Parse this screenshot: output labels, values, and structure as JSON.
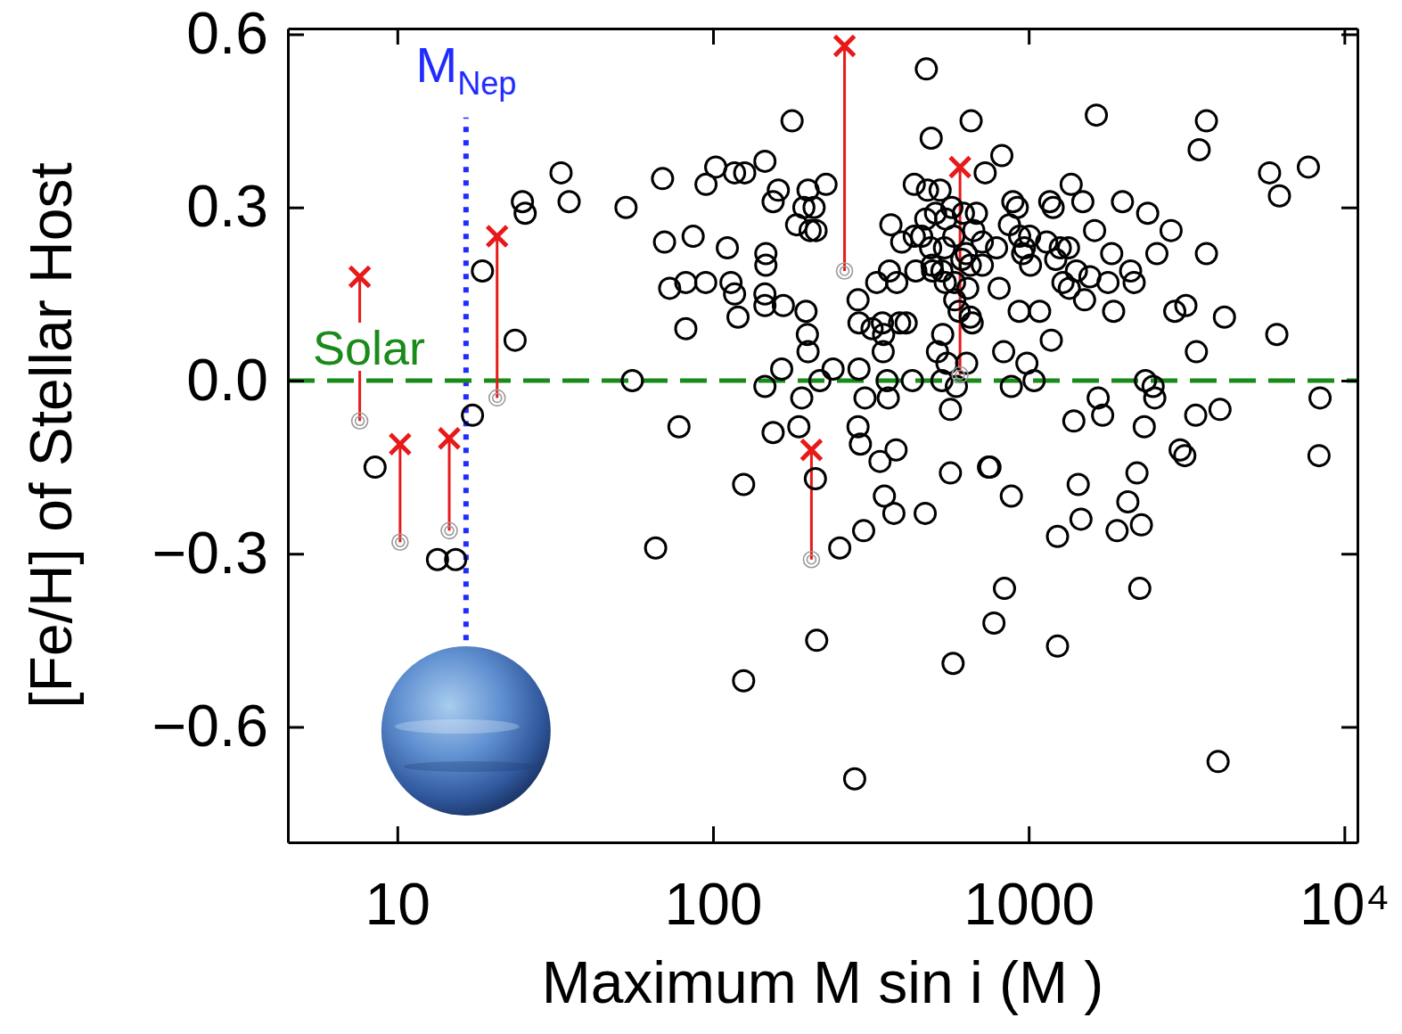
{
  "chart_data": {
    "type": "scatter",
    "x_label": "Maximum M sin i (M )",
    "y_label": "[Fe/H] of Stellar Host",
    "log": "x",
    "grid": false,
    "xlim": [
      4.5,
      11000
    ],
    "ylim": [
      -0.8,
      0.61
    ],
    "xticks": [
      10,
      100,
      1000,
      {
        "value": 10000,
        "label": "10⁴"
      }
    ],
    "yticks": [
      {
        "value": -0.6,
        "label": "−0.6"
      },
      {
        "value": -0.3,
        "label": "−0.3"
      },
      {
        "value": 0,
        "label": "0.0"
      },
      0.3,
      0.6
    ],
    "reference_lines": [
      {
        "label": "M",
        "label_subscript": "Nep",
        "x": 16.5,
        "y_range": [
          -0.45,
          0.456
        ],
        "color": "#1f2bff",
        "line_style": "dotted"
      },
      {
        "label": "Solar",
        "y": 0,
        "color": "#1a8a1a",
        "line_style": "dashed"
      }
    ],
    "series": [
      {
        "type": "scatter",
        "marker": "circle",
        "color": "#000000",
        "x": [
          8.5,
          13.4,
          15.3,
          17.3,
          18.6,
          23.6,
          24.9,
          25.4,
          33,
          35,
          53,
          55.5,
          65.8,
          69.2,
          70.2,
          72.9,
          78,
          82,
          82,
          86.5,
          94.8,
          95,
          102,
          111,
          114,
          117,
          117,
          120,
          126,
          125,
          125,
          146,
          147,
          147,
          146,
          146,
          146,
          155,
          155,
          161,
          167,
          165,
          178,
          184,
          191,
          187,
          194,
          197,
          199,
          200,
          203,
          209,
          200,
          211,
          213,
          212,
          218,
          228,
          240,
          252,
          281,
          288,
          290,
          288,
          290,
          293,
          300,
          303,
          319,
          330,
          338,
          346,
          347,
          344,
          349,
          356,
          362,
          366,
          374,
          359,
          380,
          382,
          396,
          390,
          409,
          428,
          434,
          434,
          439,
          458,
          470,
          472,
          474,
          478,
          491,
          489,
          494,
          496,
          507,
          514,
          524,
          531,
          534,
          531,
          541,
          544,
          546,
          551,
          565,
          565,
          571,
          579,
          576,
          582,
          583,
          590,
          602,
          614,
          621,
          634,
          636,
          641,
          653,
          653,
          657,
          662,
          670,
          683,
          713,
          713,
          728,
          746,
          754,
          776,
          791,
          806,
          822,
          833,
          838,
          869,
          881,
          881,
          891,
          920,
          933,
          936,
          957,
          969,
          987,
          1007,
          1013,
          1040,
          1083,
          1140,
          1179,
          1166,
          1195,
          1218,
          1234,
          1234,
          1259,
          1284,
          1337,
          1363,
          1345,
          1390,
          1416,
          1435,
          1464,
          1484,
          1503,
          1563,
          1617,
          1638,
          1660,
          1715,
          1783,
          1832,
          1858,
          1905,
          1982,
          2061,
          2103,
          2158,
          2203,
          2248,
          2275,
          2323,
          2343,
          2382,
          2478,
          2508,
          2547,
          2825,
          2902,
          3018,
          3122,
          3147,
          3381,
          3398,
          3467,
          3656,
          3656,
          4037,
          3981,
          4169,
          5795,
          6109,
          6227,
          7691,
          8375,
          8310
        ],
        "values": [
          -0.15,
          -0.31,
          -0.31,
          -0.06,
          0.19,
          0.07,
          0.31,
          0.29,
          0.36,
          0.31,
          0.3,
          0.0,
          -0.29,
          0.35,
          0.24,
          0.16,
          -0.08,
          0.17,
          0.09,
          0.25,
          0.17,
          0.34,
          0.37,
          0.23,
          0.17,
          0.36,
          0.15,
          0.11,
          0.36,
          -0.18,
          -0.52,
          0.38,
          0.22,
          0.2,
          0.15,
          0.13,
          -0.01,
          0.31,
          -0.09,
          0.33,
          0.13,
          0.02,
          0.45,
          0.27,
          -0.03,
          -0.08,
          0.3,
          0.12,
          0.08,
          0.05,
          0.26,
          0.3,
          0.33,
          -0.17,
          -0.45,
          0.26,
          0.0,
          0.34,
          0.02,
          -0.29,
          -0.69,
          0.14,
          0.02,
          -0.08,
          0.1,
          -0.11,
          -0.26,
          -0.03,
          0.09,
          0.17,
          -0.14,
          0.05,
          0.08,
          0.1,
          -0.2,
          0.0,
          0.19,
          0.27,
          -0.23,
          -0.03,
          -0.12,
          0.17,
          0.24,
          0.1,
          0.1,
          0.0,
          0.34,
          0.25,
          0.19,
          0.25,
          -0.23,
          0.28,
          0.54,
          0.33,
          0.42,
          0.23,
          0.2,
          0.19,
          0.29,
          0.05,
          0.33,
          0.19,
          0.08,
          0.0,
          0.23,
          0.17,
          0.28,
          0.03,
          -0.05,
          -0.16,
          0.3,
          0.25,
          -0.49,
          0.17,
          0.14,
          -0.01,
          0.12,
          0.21,
          0.29,
          0.22,
          0.03,
          0.16,
          0.2,
          0.11,
          0.45,
          0.1,
          0.26,
          0.29,
          0.24,
          0.2,
          0.36,
          -0.15,
          -0.15,
          -0.42,
          0.23,
          0.16,
          0.39,
          0.05,
          -0.36,
          0.27,
          -0.2,
          -0.01,
          0.31,
          0.3,
          0.12,
          0.25,
          0.22,
          0.23,
          0.03,
          0.25,
          0.2,
          0.0,
          0.12,
          0.24,
          0.07,
          0.31,
          0.3,
          0.21,
          -0.46,
          -0.27,
          0.23,
          0.17,
          0.23,
          0.34,
          0.16,
          -0.07,
          0.19,
          -0.18,
          -0.24,
          0.31,
          0.14,
          0.18,
          0.26,
          0.46,
          -0.03,
          -0.06,
          0.17,
          0.22,
          0.12,
          -0.26,
          0.31,
          -0.21,
          0.19,
          0.17,
          -0.16,
          -0.36,
          -0.25,
          -0.08,
          0.0,
          0.29,
          -0.01,
          -0.03,
          0.22,
          0.26,
          0.12,
          -0.12,
          -0.13,
          0.13,
          -0.06,
          0.05,
          0.4,
          0.45,
          0.22,
          -0.05,
          -0.66,
          0.11,
          0.36,
          0.08,
          0.32,
          0.37,
          -0.03,
          -0.13
        ]
      },
      {
        "type": "scatter",
        "marker": "double_circle",
        "color": "#9a9a9a",
        "x": [
          7.6,
          10.2,
          14.6,
          20.7,
          205,
          261,
          606
        ],
        "values": [
          -0.07,
          -0.28,
          -0.26,
          -0.03,
          -0.31,
          0.19,
          0.01
        ]
      },
      {
        "type": "scatter",
        "marker": "x",
        "color": "#e8191a",
        "line_style": "solid",
        "x": [
          7.6,
          10.2,
          14.6,
          20.7,
          205,
          261,
          606
        ],
        "values": [
          0.18,
          -0.11,
          -0.1,
          0.25,
          -0.12,
          0.58,
          0.37
        ]
      }
    ]
  }
}
